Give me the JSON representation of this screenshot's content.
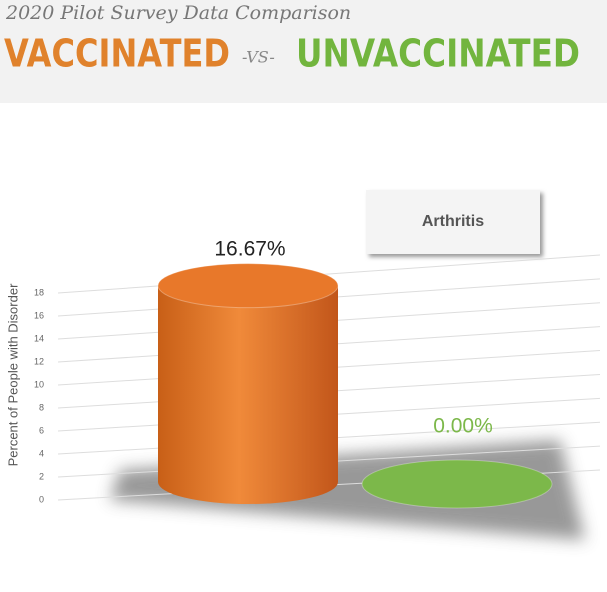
{
  "header": {
    "subtitle": "2020 Pilot Survey Data Comparison",
    "left": "VACCINATED",
    "vs": "-VS-",
    "right": "UNVACCINATED"
  },
  "chart_data": {
    "type": "cylinder",
    "title": "Arthritis",
    "ylabel": "Percent of People with Disorder",
    "categories": [
      null,
      null
    ],
    "values": [
      16.67,
      0
    ],
    "value_labels": [
      "16.67%",
      "0.00%"
    ],
    "colors": [
      "#e8782a",
      "#7cb84a"
    ],
    "value_label_colors": [
      "#222222",
      "#7cb84a"
    ],
    "ylim": [
      0,
      18
    ],
    "yticks": [
      0,
      2,
      4,
      6,
      8,
      10,
      12,
      14,
      16,
      18
    ],
    "grid": true
  }
}
